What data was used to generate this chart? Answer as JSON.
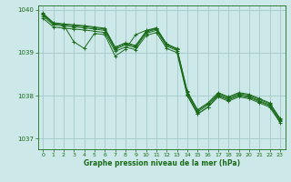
{
  "bg_color": "#cce8e8",
  "grid_color": "#aacccc",
  "line_color": "#1a6b1a",
  "xlabel": "Graphe pression niveau de la mer (hPa)",
  "ylim": [
    1036.75,
    1040.1
  ],
  "xlim": [
    -0.5,
    23.5
  ],
  "yticks": [
    1037,
    1038,
    1039,
    1040
  ],
  "xticks": [
    0,
    1,
    2,
    3,
    4,
    5,
    6,
    7,
    8,
    9,
    10,
    11,
    12,
    13,
    14,
    15,
    16,
    17,
    18,
    19,
    20,
    21,
    22,
    23
  ],
  "series": [
    [
      1039.85,
      1039.65,
      1039.62,
      1039.6,
      1039.58,
      1039.55,
      1039.52,
      1039.08,
      1039.18,
      1039.12,
      1039.45,
      1039.52,
      1039.15,
      1039.05,
      1038.05,
      1037.62,
      1037.78,
      1038.02,
      1037.92,
      1038.02,
      1037.98,
      1037.88,
      1037.78,
      1037.42
    ],
    [
      1039.8,
      1039.6,
      1039.57,
      1039.55,
      1039.53,
      1039.5,
      1039.47,
      1039.03,
      1039.13,
      1039.07,
      1039.4,
      1039.47,
      1039.1,
      1039.0,
      1038.0,
      1037.57,
      1037.73,
      1037.97,
      1037.87,
      1037.97,
      1037.93,
      1037.83,
      1037.73,
      1037.37
    ],
    [
      1039.88,
      1039.68,
      1039.65,
      1039.63,
      1039.61,
      1039.58,
      1039.55,
      1039.11,
      1039.21,
      1039.15,
      1039.48,
      1039.55,
      1039.18,
      1039.08,
      1038.08,
      1037.65,
      1037.81,
      1038.05,
      1037.95,
      1038.05,
      1038.01,
      1037.91,
      1037.81,
      1037.45
    ],
    [
      1039.92,
      1039.7,
      1039.67,
      1039.65,
      1039.63,
      1039.6,
      1039.57,
      1039.13,
      1039.23,
      1039.17,
      1039.5,
      1039.57,
      1039.2,
      1039.1,
      1038.1,
      1037.67,
      1037.83,
      1038.07,
      1037.97,
      1038.07,
      1038.03,
      1037.93,
      1037.83,
      1037.47
    ]
  ],
  "volatile_y": [
    1039.9,
    1039.68,
    1039.65,
    1039.25,
    1039.1,
    1039.45,
    1039.42,
    1038.92,
    1039.08,
    1039.42,
    1039.52,
    1039.58,
    1039.2,
    1039.08,
    1038.02,
    1037.57,
    1037.73,
    1038.0,
    1037.9,
    1038.0,
    1037.96,
    1037.86,
    1037.76,
    1037.4
  ]
}
